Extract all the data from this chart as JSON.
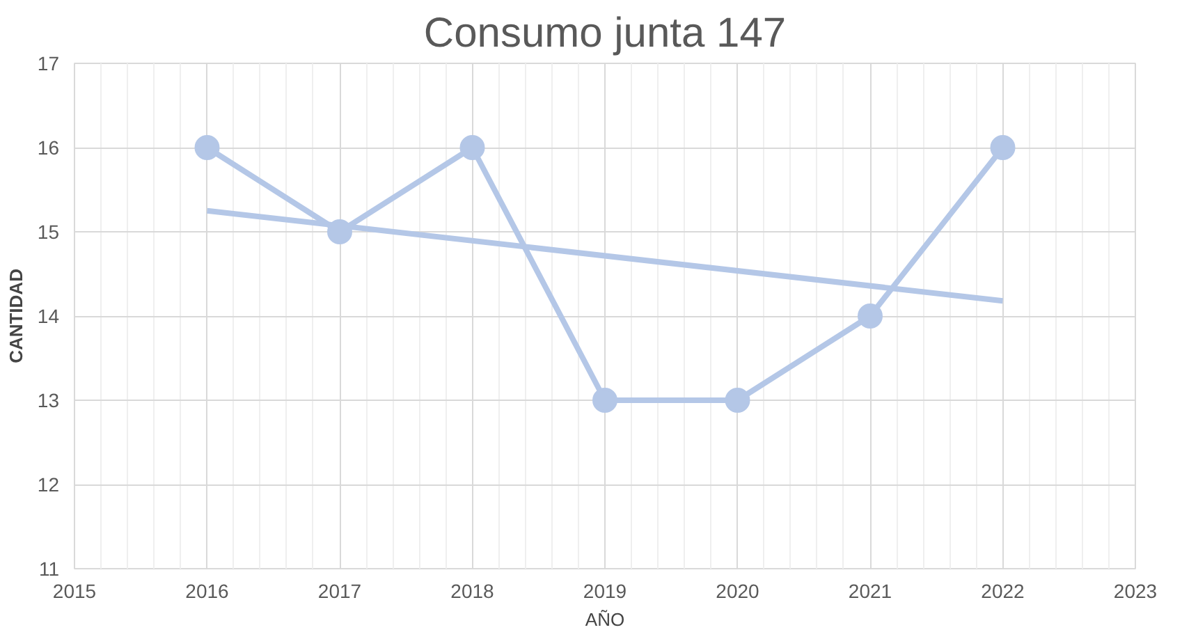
{
  "chart_data": {
    "type": "line",
    "title": "Consumo junta 147",
    "xlabel": "AÑO",
    "ylabel": "CANTIDAD",
    "xlim": [
      2015,
      2023
    ],
    "xticks": [
      2015,
      2016,
      2017,
      2018,
      2019,
      2020,
      2021,
      2022,
      2023
    ],
    "ylim": [
      11,
      17
    ],
    "yticks": [
      11,
      12,
      13,
      14,
      15,
      16,
      17
    ],
    "grid": true,
    "marker": "circle",
    "line_style": "solid",
    "series": [
      {
        "color": "#b4c7e7",
        "x": [
          2016,
          2017,
          2018,
          2019,
          2020,
          2021,
          2022
        ],
        "values": [
          16,
          15,
          16,
          13,
          13,
          14,
          16
        ]
      },
      {
        "type": "line",
        "marker": "none",
        "color": "#b4c7e7",
        "x": [
          2016,
          2022
        ],
        "values": [
          15.25,
          14.18
        ]
      }
    ]
  }
}
